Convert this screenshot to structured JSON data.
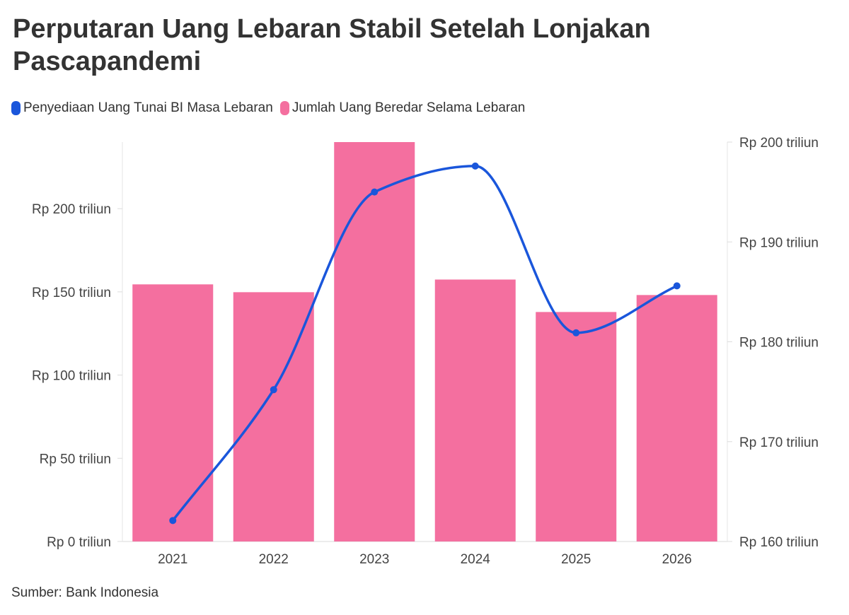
{
  "chart_data": {
    "type": "bar",
    "title": "Perputaran Uang Lebaran Stabil Setelah Lonjakan Pascapandemi",
    "source": "Sumber: Bank Indonesia",
    "categories": [
      "2021",
      "2022",
      "2023",
      "2024",
      "2025",
      "2026"
    ],
    "series": [
      {
        "name": "Jumlah Uang Beredar Selama Lebaran",
        "type": "bar",
        "axis": "left",
        "color": "#f46f9f",
        "values": [
          154.5,
          149.8,
          240.0,
          157.4,
          137.9,
          148.1
        ]
      },
      {
        "name": "Penyediaan Uang Tunai BI Masa Lebaran",
        "type": "line",
        "axis": "right",
        "color": "#1a56db",
        "values": [
          162.1,
          175.2,
          195.0,
          197.6,
          180.9,
          185.6
        ]
      }
    ],
    "legend_order": [
      1,
      0
    ],
    "left_axis": {
      "ylim": [
        0,
        240
      ],
      "ticks": [
        0,
        50,
        100,
        150,
        200
      ],
      "tick_labels": [
        "Rp 0 triliun",
        "Rp 50 triliun",
        "Rp 100 triliun",
        "Rp 150 triliun",
        "Rp 200 triliun"
      ]
    },
    "right_axis": {
      "ylim": [
        160,
        200
      ],
      "ticks": [
        160,
        170,
        180,
        190,
        200
      ],
      "tick_labels": [
        "Rp 160 triliun",
        "Rp 170 triliun",
        "Rp 180 triliun",
        "Rp 190 triliun",
        "Rp 200 triliun"
      ]
    },
    "grid": false,
    "legend_position": "top-left"
  }
}
